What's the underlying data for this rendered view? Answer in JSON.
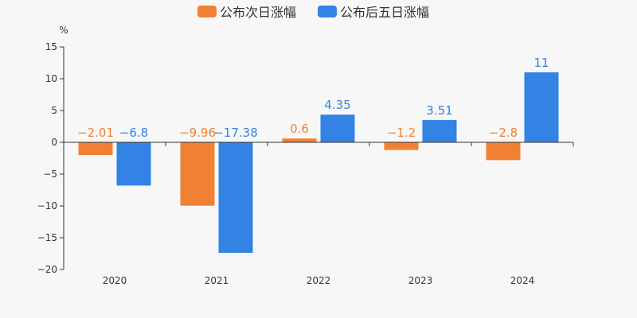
{
  "chart_data": {
    "type": "bar",
    "categories": [
      "2020",
      "2021",
      "2022",
      "2023",
      "2024"
    ],
    "series": [
      {
        "name": "公布次日涨幅",
        "values": [
          -2.01,
          -9.96,
          0.6,
          -1.2,
          -2.8
        ],
        "labels": [
          "−2.01",
          "−9.96",
          "0.6",
          "−1.2",
          "−2.8"
        ],
        "color": "#f08134"
      },
      {
        "name": "公布后五日涨幅",
        "values": [
          -6.8,
          -17.38,
          4.35,
          3.51,
          11
        ],
        "labels": [
          "−6.8",
          "−17.38",
          "4.35",
          "3.51",
          "11"
        ],
        "color": "#3283e3"
      }
    ],
    "y_unit": "%",
    "ylim": [
      -20,
      15
    ],
    "y_ticks": [
      15,
      10,
      5,
      0,
      -5,
      -10,
      -15,
      -20
    ],
    "y_tick_labels": [
      "15",
      "10",
      "5",
      "0",
      "−5",
      "−10",
      "−15",
      "−20"
    ],
    "grid": false,
    "legend_position": "top-center"
  }
}
